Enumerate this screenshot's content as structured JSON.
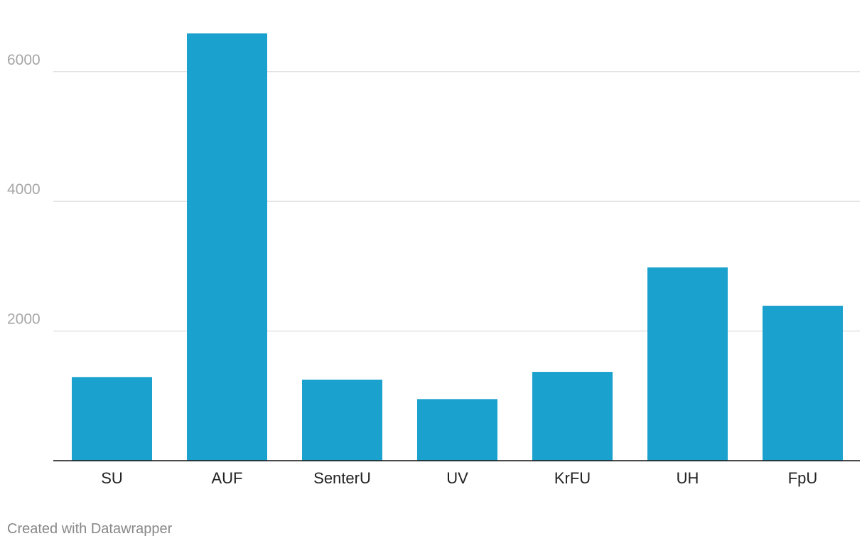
{
  "chart_data": {
    "type": "bar",
    "categories": [
      "SU",
      "AUF",
      "SenterU",
      "UV",
      "KrFU",
      "UH",
      "FpU"
    ],
    "values": [
      1290,
      6590,
      1250,
      950,
      1370,
      2980,
      2390
    ],
    "title": "",
    "xlabel": "",
    "ylabel": "",
    "ylim": [
      0,
      6600
    ],
    "yticks": [
      2000,
      4000,
      6000
    ],
    "grid": true,
    "bar_color": "#1aa1cd"
  },
  "footer": {
    "credit": "Created with Datawrapper"
  }
}
